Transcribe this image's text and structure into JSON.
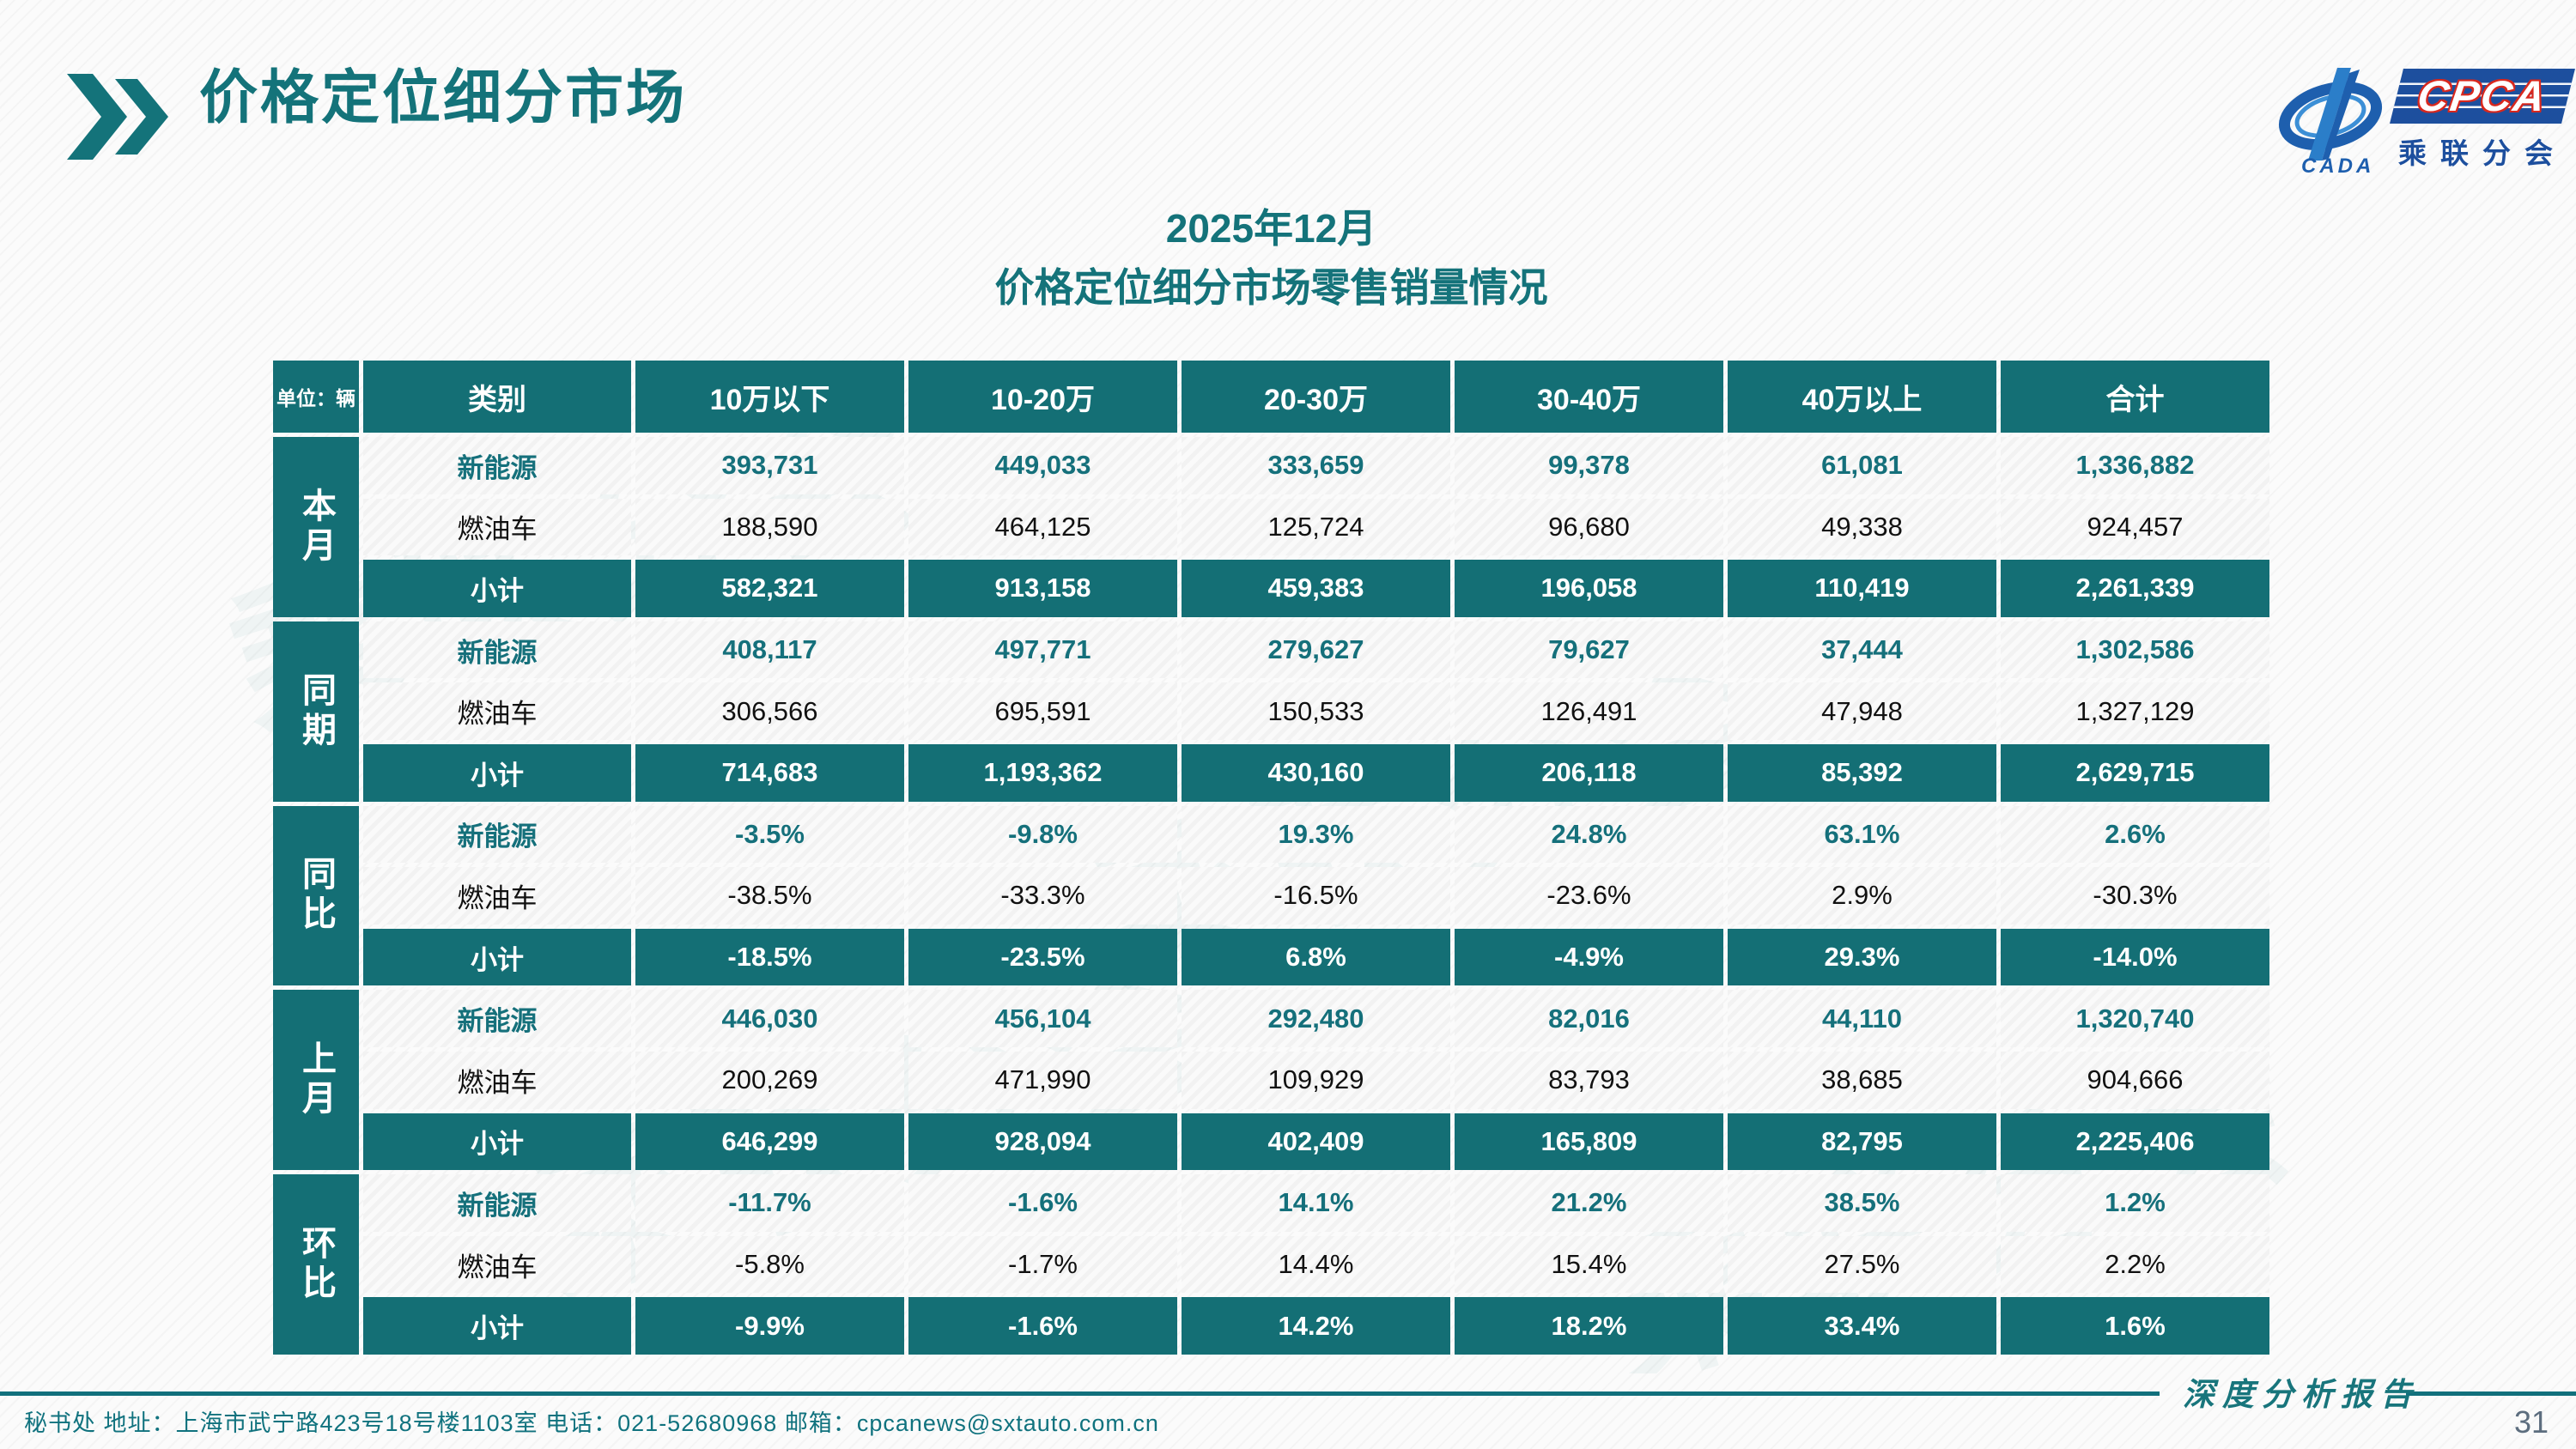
{
  "header": {
    "title": "价格定位细分市场"
  },
  "logo": {
    "cpca": "CPCA",
    "cada": "CADA",
    "subtitle": "乘联分会"
  },
  "subtitle": {
    "line1": "2025年12月",
    "line2": "价格定位细分市场零售销量情况"
  },
  "table": {
    "unit_label": "单位：辆",
    "col_headers": [
      "类别",
      "10万以下",
      "10-20万",
      "20-30万",
      "30-40万",
      "40万以上",
      "合计"
    ],
    "groups": [
      {
        "label": "本月",
        "rows": [
          {
            "type": "nev",
            "label": "新能源",
            "values": [
              "393,731",
              "449,033",
              "333,659",
              "99,378",
              "61,081",
              "1,336,882"
            ]
          },
          {
            "type": "fuel",
            "label": "燃油车",
            "values": [
              "188,590",
              "464,125",
              "125,724",
              "96,680",
              "49,338",
              "924,457"
            ]
          },
          {
            "type": "subtotal",
            "label": "小计",
            "values": [
              "582,321",
              "913,158",
              "459,383",
              "196,058",
              "110,419",
              "2,261,339"
            ]
          }
        ]
      },
      {
        "label": "同期",
        "rows": [
          {
            "type": "nev",
            "label": "新能源",
            "values": [
              "408,117",
              "497,771",
              "279,627",
              "79,627",
              "37,444",
              "1,302,586"
            ]
          },
          {
            "type": "fuel",
            "label": "燃油车",
            "values": [
              "306,566",
              "695,591",
              "150,533",
              "126,491",
              "47,948",
              "1,327,129"
            ]
          },
          {
            "type": "subtotal",
            "label": "小计",
            "values": [
              "714,683",
              "1,193,362",
              "430,160",
              "206,118",
              "85,392",
              "2,629,715"
            ]
          }
        ]
      },
      {
        "label": "同比",
        "rows": [
          {
            "type": "nev",
            "label": "新能源",
            "values": [
              "-3.5%",
              "-9.8%",
              "19.3%",
              "24.8%",
              "63.1%",
              "2.6%"
            ]
          },
          {
            "type": "fuel",
            "label": "燃油车",
            "values": [
              "-38.5%",
              "-33.3%",
              "-16.5%",
              "-23.6%",
              "2.9%",
              "-30.3%"
            ]
          },
          {
            "type": "subtotal",
            "label": "小计",
            "values": [
              "-18.5%",
              "-23.5%",
              "6.8%",
              "-4.9%",
              "29.3%",
              "-14.0%"
            ]
          }
        ]
      },
      {
        "label": "上月",
        "rows": [
          {
            "type": "nev",
            "label": "新能源",
            "values": [
              "446,030",
              "456,104",
              "292,480",
              "82,016",
              "44,110",
              "1,320,740"
            ]
          },
          {
            "type": "fuel",
            "label": "燃油车",
            "values": [
              "200,269",
              "471,990",
              "109,929",
              "83,793",
              "38,685",
              "904,666"
            ]
          },
          {
            "type": "subtotal",
            "label": "小计",
            "values": [
              "646,299",
              "928,094",
              "402,409",
              "165,809",
              "82,795",
              "2,225,406"
            ]
          }
        ]
      },
      {
        "label": "环比",
        "rows": [
          {
            "type": "nev",
            "label": "新能源",
            "values": [
              "-11.7%",
              "-1.6%",
              "14.1%",
              "21.2%",
              "38.5%",
              "1.2%"
            ]
          },
          {
            "type": "fuel",
            "label": "燃油车",
            "values": [
              "-5.8%",
              "-1.7%",
              "14.4%",
              "15.4%",
              "27.5%",
              "2.2%"
            ]
          },
          {
            "type": "subtotal",
            "label": "小计",
            "values": [
              "-9.9%",
              "-1.6%",
              "14.2%",
              "18.2%",
              "33.4%",
              "1.6%"
            ]
          }
        ]
      }
    ]
  },
  "footer": {
    "contact": "秘书处   地址：上海市武宁路423号18号楼1103室 电话：021-52680968   邮箱：cpcanews@sxtauto.com.cn",
    "report_label": "深度分析报告",
    "page_number": "31"
  },
  "colors": {
    "teal": "#146f75",
    "logo_blue": "#1d4f9e",
    "logo_red": "#d8281e"
  },
  "watermark_text": "乘联分会"
}
